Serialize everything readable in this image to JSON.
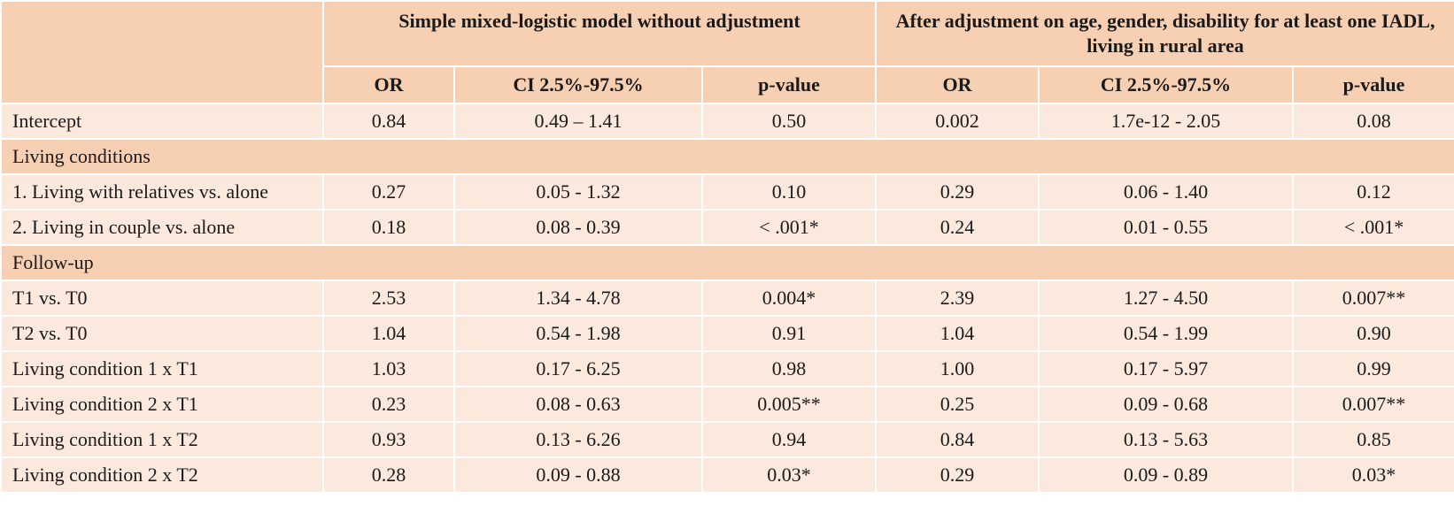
{
  "header": {
    "group1": "Simple mixed-logistic model without adjustment",
    "group2": "After adjustment on age, gender, disability for at least one IADL, living in rural area",
    "col_or": "OR",
    "col_ci": "CI 2.5%-97.5%",
    "col_p": "p-value"
  },
  "rows": [
    {
      "type": "data",
      "label": "Intercept",
      "or1": "0.84",
      "ci1": "0.49 – 1.41",
      "p1": "0.50",
      "or2": "0.002",
      "ci2": "1.7e-12 - 2.05",
      "p2": "0.08"
    },
    {
      "type": "section",
      "label": "Living conditions"
    },
    {
      "type": "data",
      "label": "1. Living with relatives vs. alone",
      "or1": "0.27",
      "ci1": "0.05 - 1.32",
      "p1": "0.10",
      "or2": "0.29",
      "ci2": "0.06 - 1.40",
      "p2": "0.12"
    },
    {
      "type": "data",
      "label": "2. Living in couple vs. alone",
      "or1": "0.18",
      "ci1": "0.08 - 0.39",
      "p1": "< .001*",
      "or2": "0.24",
      "ci2": "0.01 - 0.55",
      "p2": "< .001*"
    },
    {
      "type": "section",
      "label": "Follow-up"
    },
    {
      "type": "data",
      "label": "T1 vs. T0",
      "or1": "2.53",
      "ci1": "1.34 - 4.78",
      "p1": "0.004*",
      "or2": "2.39",
      "ci2": "1.27 - 4.50",
      "p2": "0.007**"
    },
    {
      "type": "data",
      "label": "T2 vs. T0",
      "or1": "1.04",
      "ci1": "0.54 - 1.98",
      "p1": "0.91",
      "or2": "1.04",
      "ci2": "0.54 - 1.99",
      "p2": "0.90"
    },
    {
      "type": "data",
      "label": "Living condition 1 x T1",
      "or1": "1.03",
      "ci1": "0.17 - 6.25",
      "p1": "0.98",
      "or2": "1.00",
      "ci2": "0.17 - 5.97",
      "p2": "0.99"
    },
    {
      "type": "data",
      "label": "Living condition 2 x T1",
      "or1": "0.23",
      "ci1": "0.08 - 0.63",
      "p1": "0.005**",
      "or2": "0.25",
      "ci2": "0.09 - 0.68",
      "p2": "0.007**"
    },
    {
      "type": "data",
      "label": "Living condition 1 x T2",
      "or1": "0.93",
      "ci1": "0.13 - 6.26",
      "p1": "0.94",
      "or2": "0.84",
      "ci2": "0.13 - 5.63",
      "p2": "0.85"
    },
    {
      "type": "data",
      "label": "Living condition 2 x T2",
      "or1": "0.28",
      "ci1": "0.09 - 0.88",
      "p1": "0.03*",
      "or2": "0.29",
      "ci2": "0.09 - 0.89",
      "p2": "0.03*"
    }
  ]
}
